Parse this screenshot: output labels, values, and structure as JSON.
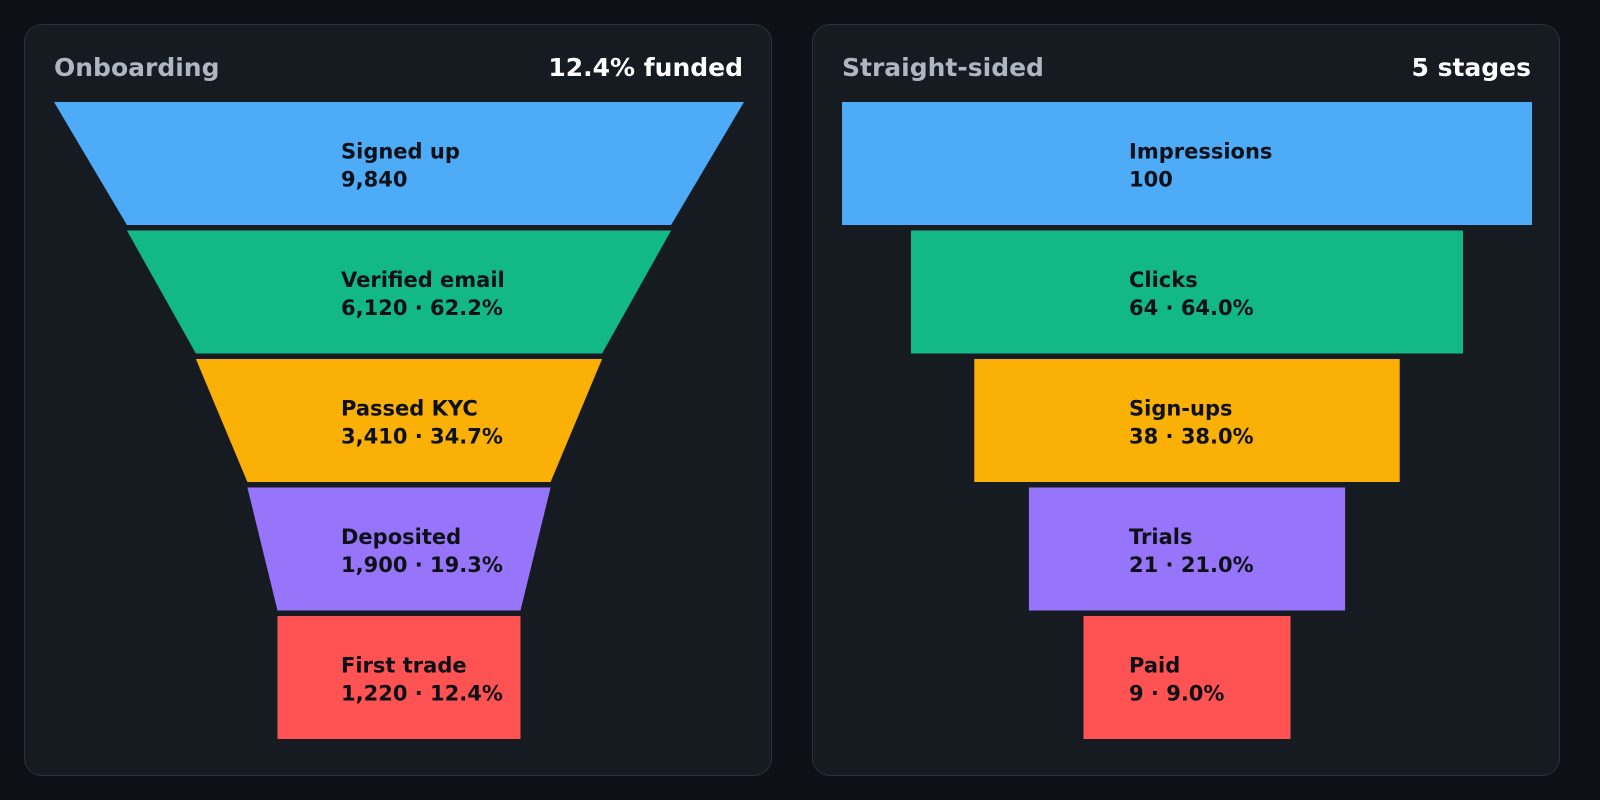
{
  "colors": {
    "background": "#0d1117",
    "panel": "#161b22",
    "stages": [
      "#4dabf7",
      "#12b886",
      "#fab005",
      "#9775fa",
      "#ff5252"
    ],
    "label_dark": "#0d1117",
    "label_light": "#a4acb6"
  },
  "chart_data": [
    {
      "type": "funnel",
      "shape": "tapered",
      "title": "Onboarding",
      "summary": "12.4% funded",
      "categories": [
        "Signed up",
        "Verified email",
        "Passed KYC",
        "Deposited",
        "First trade"
      ],
      "values": [
        9840,
        6120,
        3410,
        1900,
        1220
      ],
      "labels": [
        "9,840",
        "6,120 · 62.2%",
        "3,410 · 34.7%",
        "1,900 · 19.3%",
        "1,220 · 12.4%"
      ]
    },
    {
      "type": "funnel",
      "shape": "straight",
      "title": "Straight-sided",
      "summary": "5 stages",
      "categories": [
        "Impressions",
        "Clicks",
        "Sign-ups",
        "Trials",
        "Paid"
      ],
      "values": [
        100,
        64,
        38,
        21,
        9
      ],
      "labels": [
        "100",
        "64 · 64.0%",
        "38 · 38.0%",
        "21 · 21.0%",
        "9 · 9.0%"
      ]
    }
  ]
}
